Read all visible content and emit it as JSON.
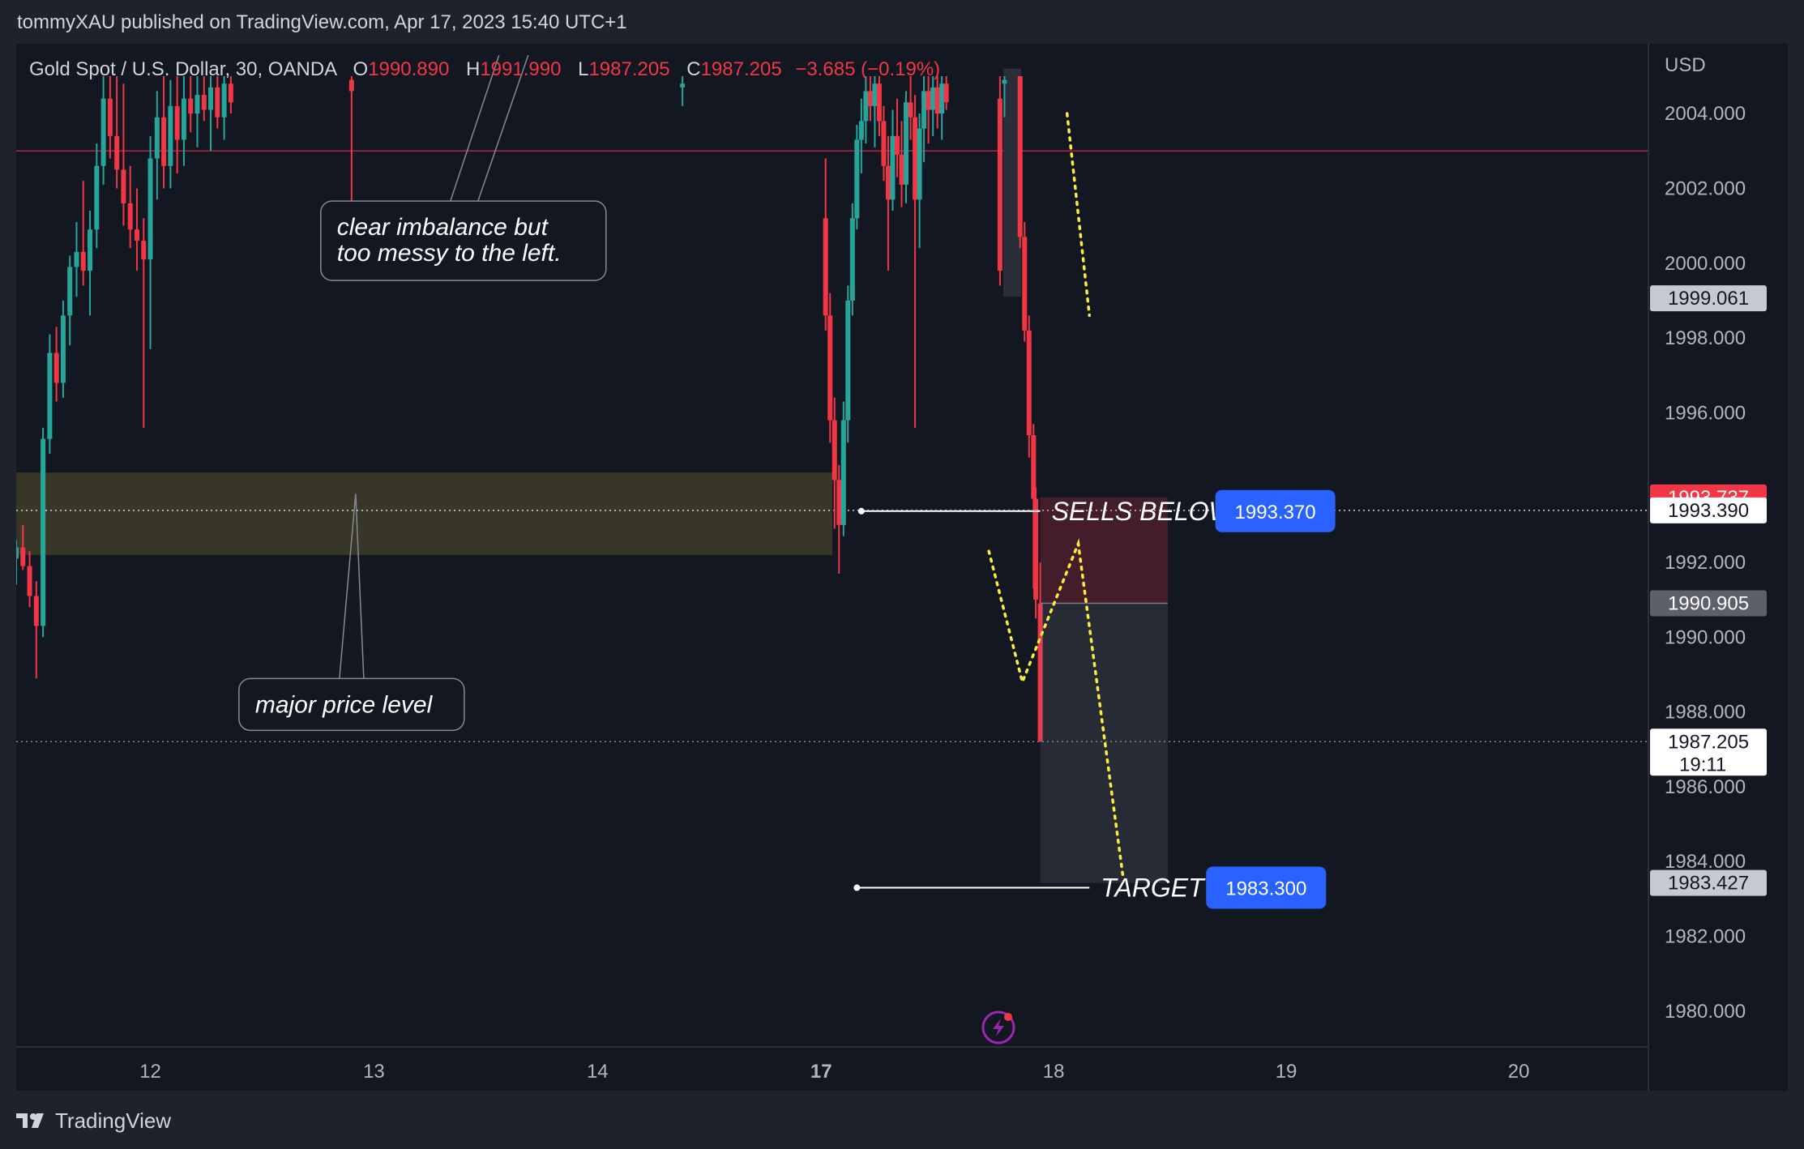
{
  "header": {
    "publisher": "tommyXAU published on TradingView.com, Apr 17, 2023 15:40 UTC+1"
  },
  "legend": {
    "symbol": "Gold Spot / U.S. Dollar, 30, OANDA",
    "o_key": "O",
    "o_val": "1990.890",
    "h_key": "H",
    "h_val": "1991.990",
    "l_key": "L",
    "l_val": "1987.205",
    "c_key": "C",
    "c_val": "1987.205",
    "change": "−3.685 (−0.19%)"
  },
  "footer": {
    "brand": "TradingView"
  },
  "colors": {
    "background": "#131722",
    "frame": "#1e222d",
    "bull": "#26a69a",
    "bear": "#f23645",
    "zone": "#3d3b28",
    "accent_blue": "#2962ff",
    "path": "#ffeb3b"
  },
  "chart_data": {
    "type": "candlestick",
    "symbol": "Gold Spot / U.S. Dollar, 30, OANDA",
    "currency": "USD",
    "ylim": [
      1979,
      2005
    ],
    "x_ticks": [
      {
        "label": "12",
        "x": 11.6
      },
      {
        "label": "13",
        "x": 12.6
      },
      {
        "label": "14",
        "x": 13.6
      },
      {
        "label": "17",
        "x": 14.6,
        "bold": true
      },
      {
        "label": "18",
        "x": 15.64
      },
      {
        "label": "19",
        "x": 16.68
      },
      {
        "label": "20",
        "x": 17.72
      }
    ],
    "xlim": [
      11.0,
      18.3
    ],
    "y_ticks": [
      "2004.000",
      "2002.000",
      "2000.000",
      "1998.000",
      "1996.000",
      "1992.000",
      "1990.000",
      "1988.000",
      "1986.000",
      "1984.000",
      "1982.000",
      "1980.000"
    ],
    "y_tick_values": [
      2004,
      2002,
      2000,
      1998,
      1996,
      1992,
      1990,
      1988,
      1986,
      1984,
      1982,
      1980
    ],
    "price_labels": [
      {
        "value": 1999.061,
        "text": "1999.061",
        "bg": "#c7c9d1",
        "fg": "#131722"
      },
      {
        "value": 1993.737,
        "text": "1993.737",
        "bg": "#f23645",
        "fg": "#ffffff"
      },
      {
        "value": 1993.39,
        "text": "1993.390",
        "bg": "#ffffff",
        "fg": "#131722"
      },
      {
        "value": 1990.905,
        "text": "1990.905",
        "bg": "#5d606b",
        "fg": "#ffffff"
      },
      {
        "value": 1987.205,
        "text": "1987.205",
        "sub": "19:11",
        "bg": "#ffffff",
        "fg": "#131722"
      },
      {
        "value": 1983.427,
        "text": "1983.427",
        "bg": "#c7c9d1",
        "fg": "#131722"
      }
    ],
    "horizontal_lines": [
      {
        "value": 2003.0,
        "style": "solid",
        "color": "#b2263a"
      },
      {
        "value": 1993.39,
        "style": "dotted",
        "color": "#d1d4dc"
      },
      {
        "value": 1987.205,
        "style": "dotted",
        "color": "#868993"
      }
    ],
    "zone": {
      "y_top": 1994.4,
      "y_bottom": 1992.2,
      "x_start": 11.0,
      "x_end": 14.65
    },
    "levels": [
      {
        "name": "SELLS BELOW",
        "value": 1993.37,
        "label": "1993.370",
        "x_start": 14.78,
        "x_end": 15.58
      },
      {
        "name": "TARGET",
        "value": 1983.3,
        "label": "1983.300",
        "x_start": 14.76,
        "x_end": 15.8
      }
    ],
    "position": {
      "x_start": 15.58,
      "x_end": 16.15,
      "stop": 1993.737,
      "entry": 1990.905,
      "target": 1983.427
    },
    "annotations": [
      {
        "text_lines": [
          "clear imbalance but",
          "too messy to the left."
        ],
        "x": 13.0,
        "y": 2000.6
      },
      {
        "text_lines": [
          "major price level"
        ],
        "x": 12.5,
        "y": 1988.2
      }
    ],
    "projection_paths": [
      [
        [
          15.7,
          2004.0
        ],
        [
          15.8,
          1998.6
        ]
      ],
      [
        [
          15.35,
          1992.3
        ],
        [
          15.5,
          1988.8
        ],
        [
          15.75,
          1992.5
        ],
        [
          15.95,
          1983.6
        ]
      ]
    ],
    "candles": [
      {
        "x": 11.0,
        "o": 1992.1,
        "h": 1992.6,
        "l": 1991.4,
        "c": 1992.4
      },
      {
        "x": 11.03,
        "o": 1992.4,
        "h": 1993.0,
        "l": 1991.8,
        "c": 1991.9
      },
      {
        "x": 11.06,
        "o": 1991.9,
        "h": 1992.3,
        "l": 1990.8,
        "c": 1991.1
      },
      {
        "x": 11.09,
        "o": 1991.1,
        "h": 1991.5,
        "l": 1988.9,
        "c": 1990.3
      },
      {
        "x": 11.12,
        "o": 1990.3,
        "h": 1995.6,
        "l": 1990.0,
        "c": 1995.3
      },
      {
        "x": 11.15,
        "o": 1995.3,
        "h": 1998.1,
        "l": 1994.9,
        "c": 1997.6
      },
      {
        "x": 11.18,
        "o": 1997.6,
        "h": 1998.3,
        "l": 1996.3,
        "c": 1996.8
      },
      {
        "x": 11.21,
        "o": 1996.8,
        "h": 1999.0,
        "l": 1996.4,
        "c": 1998.6
      },
      {
        "x": 11.24,
        "o": 1998.6,
        "h": 2000.2,
        "l": 1997.8,
        "c": 1999.9
      },
      {
        "x": 11.27,
        "o": 1999.9,
        "h": 2001.1,
        "l": 1999.1,
        "c": 2000.3
      },
      {
        "x": 11.3,
        "o": 2000.3,
        "h": 2002.2,
        "l": 1999.4,
        "c": 1999.8
      },
      {
        "x": 11.33,
        "o": 1999.8,
        "h": 2001.4,
        "l": 1998.6,
        "c": 2000.9
      },
      {
        "x": 11.36,
        "o": 2000.9,
        "h": 2003.2,
        "l": 2000.4,
        "c": 2002.6
      },
      {
        "x": 11.39,
        "o": 2002.6,
        "h": 2005.0,
        "l": 2002.1,
        "c": 2004.4
      },
      {
        "x": 11.42,
        "o": 2004.4,
        "h": 2005.0,
        "l": 2002.8,
        "c": 2003.4
      },
      {
        "x": 11.45,
        "o": 2003.4,
        "h": 2005.0,
        "l": 2002.0,
        "c": 2002.5
      },
      {
        "x": 11.48,
        "o": 2002.5,
        "h": 2004.8,
        "l": 2001.0,
        "c": 2001.6
      },
      {
        "x": 11.51,
        "o": 2001.6,
        "h": 2002.6,
        "l": 2000.4,
        "c": 2000.9
      },
      {
        "x": 11.54,
        "o": 2000.9,
        "h": 2002.0,
        "l": 1999.8,
        "c": 2000.6
      },
      {
        "x": 11.57,
        "o": 2000.6,
        "h": 2001.2,
        "l": 1995.6,
        "c": 2000.1
      },
      {
        "x": 11.6,
        "o": 2000.1,
        "h": 2003.4,
        "l": 1997.7,
        "c": 2002.8
      },
      {
        "x": 11.63,
        "o": 2002.8,
        "h": 2004.6,
        "l": 2001.7,
        "c": 2003.9
      },
      {
        "x": 11.66,
        "o": 2003.9,
        "h": 2005.0,
        "l": 2002.0,
        "c": 2002.6
      },
      {
        "x": 11.69,
        "o": 2002.6,
        "h": 2004.9,
        "l": 2002.0,
        "c": 2004.2
      },
      {
        "x": 11.72,
        "o": 2004.2,
        "h": 2005.0,
        "l": 2002.4,
        "c": 2003.3
      },
      {
        "x": 11.75,
        "o": 2003.3,
        "h": 2005.0,
        "l": 2002.6,
        "c": 2004.4
      },
      {
        "x": 11.78,
        "o": 2004.4,
        "h": 2005.0,
        "l": 2003.5,
        "c": 2004.0
      },
      {
        "x": 11.81,
        "o": 2004.0,
        "h": 2005.0,
        "l": 2003.1,
        "c": 2004.5
      },
      {
        "x": 11.84,
        "o": 2004.5,
        "h": 2005.0,
        "l": 2003.8,
        "c": 2004.1
      },
      {
        "x": 11.87,
        "o": 2004.1,
        "h": 2005.0,
        "l": 2003.0,
        "c": 2004.7
      },
      {
        "x": 11.9,
        "o": 2004.7,
        "h": 2005.0,
        "l": 2003.6,
        "c": 2003.9
      },
      {
        "x": 11.93,
        "o": 2003.9,
        "h": 2005.0,
        "l": 2003.3,
        "c": 2004.8
      },
      {
        "x": 11.96,
        "o": 2004.8,
        "h": 2005.0,
        "l": 2004.0,
        "c": 2004.3
      },
      {
        "x": 12.5,
        "o": 2004.9,
        "h": 2005.0,
        "l": 2001.6,
        "c": 2004.6
      },
      {
        "x": 13.98,
        "o": 2004.7,
        "h": 2005.0,
        "l": 2004.2,
        "c": 2004.8
      },
      {
        "x": 14.62,
        "o": 2001.2,
        "h": 2002.8,
        "l": 1998.2,
        "c": 1998.6
      },
      {
        "x": 14.64,
        "o": 1998.6,
        "h": 1999.2,
        "l": 1995.2,
        "c": 1995.8
      },
      {
        "x": 14.66,
        "o": 1995.8,
        "h": 1996.4,
        "l": 1992.9,
        "c": 1994.2
      },
      {
        "x": 14.68,
        "o": 1994.2,
        "h": 1994.6,
        "l": 1991.7,
        "c": 1993.0
      },
      {
        "x": 14.7,
        "o": 1993.0,
        "h": 1996.3,
        "l": 1992.7,
        "c": 1995.8
      },
      {
        "x": 14.72,
        "o": 1995.8,
        "h": 1999.4,
        "l": 1995.2,
        "c": 1999.0
      },
      {
        "x": 14.74,
        "o": 1999.0,
        "h": 2001.6,
        "l": 1998.6,
        "c": 2001.2
      },
      {
        "x": 14.76,
        "o": 2001.2,
        "h": 2003.7,
        "l": 2000.9,
        "c": 2003.3
      },
      {
        "x": 14.78,
        "o": 2003.3,
        "h": 2004.4,
        "l": 2002.4,
        "c": 2003.8
      },
      {
        "x": 14.8,
        "o": 2003.8,
        "h": 2005.0,
        "l": 2003.2,
        "c": 2004.6
      },
      {
        "x": 14.82,
        "o": 2004.6,
        "h": 2005.0,
        "l": 2003.8,
        "c": 2004.2
      },
      {
        "x": 14.84,
        "o": 2004.2,
        "h": 2005.0,
        "l": 2003.1,
        "c": 2004.8
      },
      {
        "x": 14.86,
        "o": 2004.8,
        "h": 2005.0,
        "l": 2003.4,
        "c": 2003.8
      },
      {
        "x": 14.88,
        "o": 2003.8,
        "h": 2004.2,
        "l": 2002.2,
        "c": 2002.6
      },
      {
        "x": 14.9,
        "o": 2002.6,
        "h": 2003.4,
        "l": 1999.8,
        "c": 2001.7
      },
      {
        "x": 14.92,
        "o": 2001.7,
        "h": 2004.1,
        "l": 2001.4,
        "c": 2003.4
      },
      {
        "x": 14.94,
        "o": 2003.4,
        "h": 2004.4,
        "l": 2002.3,
        "c": 2002.9
      },
      {
        "x": 14.96,
        "o": 2002.9,
        "h": 2003.8,
        "l": 2001.5,
        "c": 2002.1
      },
      {
        "x": 14.98,
        "o": 2002.1,
        "h": 2004.6,
        "l": 2001.6,
        "c": 2004.3
      },
      {
        "x": 15.0,
        "o": 2004.3,
        "h": 2005.0,
        "l": 2003.3,
        "c": 2003.9
      },
      {
        "x": 15.02,
        "o": 2003.9,
        "h": 2004.5,
        "l": 1995.6,
        "c": 2001.7
      },
      {
        "x": 15.04,
        "o": 2001.7,
        "h": 2004.0,
        "l": 2000.4,
        "c": 2003.6
      },
      {
        "x": 15.06,
        "o": 2003.6,
        "h": 2005.0,
        "l": 2002.7,
        "c": 2004.6
      },
      {
        "x": 15.08,
        "o": 2004.6,
        "h": 2005.0,
        "l": 2003.2,
        "c": 2004.1
      },
      {
        "x": 15.1,
        "o": 2004.1,
        "h": 2005.0,
        "l": 2003.4,
        "c": 2004.7
      },
      {
        "x": 15.12,
        "o": 2004.7,
        "h": 2005.0,
        "l": 2003.6,
        "c": 2004.0
      },
      {
        "x": 15.14,
        "o": 2004.0,
        "h": 2005.0,
        "l": 2003.3,
        "c": 2004.8
      },
      {
        "x": 15.16,
        "o": 2004.8,
        "h": 2005.0,
        "l": 2004.1,
        "c": 2004.3
      },
      {
        "x": 15.4,
        "o": 2004.4,
        "h": 2005.0,
        "l": 1999.4,
        "c": 1999.8
      },
      {
        "x": 15.42,
        "o": 2004.8,
        "h": 2005.0,
        "l": 2003.9,
        "c": 2004.9
      },
      {
        "x": 15.49,
        "o": 2005.0,
        "h": 2005.0,
        "l": 2000.4,
        "c": 2000.7
      },
      {
        "x": 15.51,
        "o": 2000.7,
        "h": 2001.1,
        "l": 1997.9,
        "c": 1998.2
      },
      {
        "x": 15.53,
        "o": 1998.2,
        "h": 1998.6,
        "l": 1994.8,
        "c": 1995.4
      },
      {
        "x": 15.55,
        "o": 1995.4,
        "h": 1995.7,
        "l": 1991.3,
        "c": 1993.7
      },
      {
        "x": 15.56,
        "o": 1993.7,
        "h": 1994.0,
        "l": 1990.5,
        "c": 1991.0
      },
      {
        "x": 15.58,
        "o": 1990.9,
        "h": 1991.99,
        "l": 1987.2,
        "c": 1987.205
      }
    ]
  }
}
